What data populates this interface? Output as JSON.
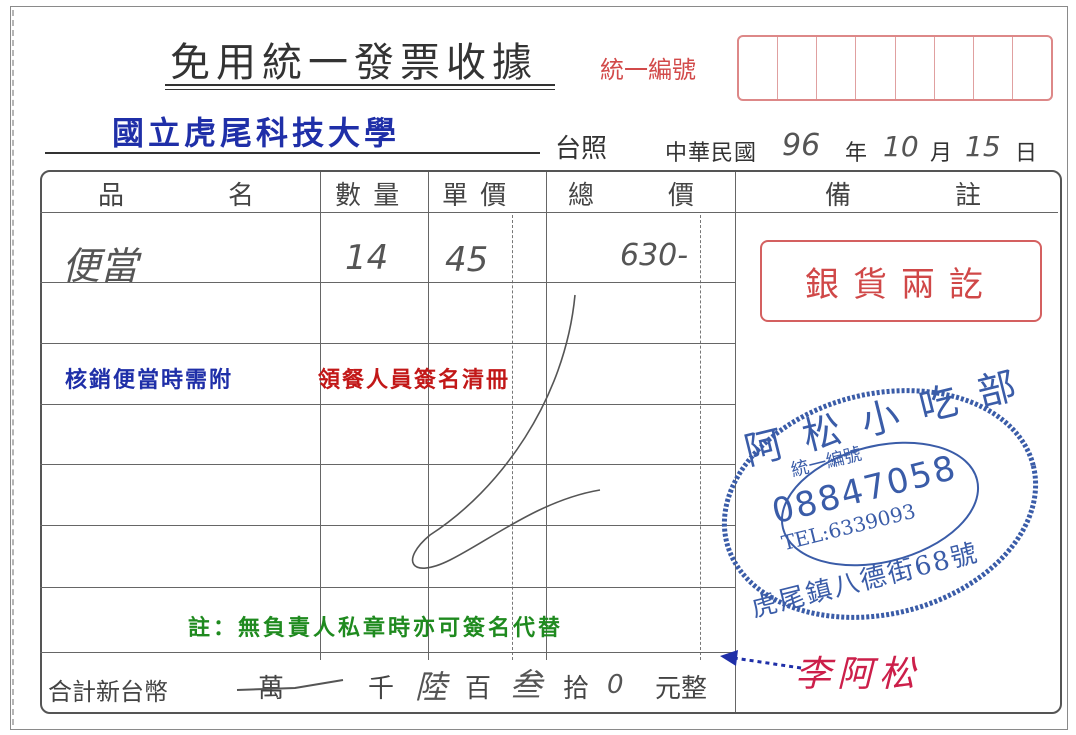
{
  "title": "免用統一發票收據",
  "tax_id_label": "統一編號",
  "buyer": "國立虎尾科技大學",
  "buyer_suffix": "台照",
  "date": {
    "prefix": "中華民國",
    "year": "96",
    "year_unit": "年",
    "month": "10",
    "month_unit": "月",
    "day": "15",
    "day_unit": "日"
  },
  "headers": {
    "item": [
      "品",
      "名"
    ],
    "qty": "數 量",
    "unit_price": "單 價",
    "total": [
      "總",
      "價"
    ],
    "remarks": [
      "備",
      "註"
    ]
  },
  "rows": [
    {
      "item": "便當",
      "qty": "14",
      "price": "45",
      "total": "630-"
    }
  ],
  "notice_blue": "核銷便當時需附",
  "notice_red": "領餐人員簽名清冊",
  "note_green": "註：無負責人私章時亦可簽名代替",
  "sum": {
    "label": "合計新台幣",
    "wan": "萬",
    "qian": "千",
    "lu": "陸",
    "bai": "百",
    "san": "叁",
    "shi": "拾",
    "zero": "0",
    "yuan": "元整"
  },
  "red_stamp": "銀貨兩訖",
  "shop_stamp": {
    "name": "阿松小吃部",
    "id_label": "統一編號",
    "id": "08847058",
    "tel": "TEL:6339093",
    "address": "虎尾鎮八德街68號"
  },
  "signature": "李阿松",
  "colors": {
    "blue": "#1f2fa8",
    "red": "#c21818",
    "green": "#1f8a1f",
    "stamp_blue": "#3a5ca8",
    "stamp_red": "#d04848"
  }
}
